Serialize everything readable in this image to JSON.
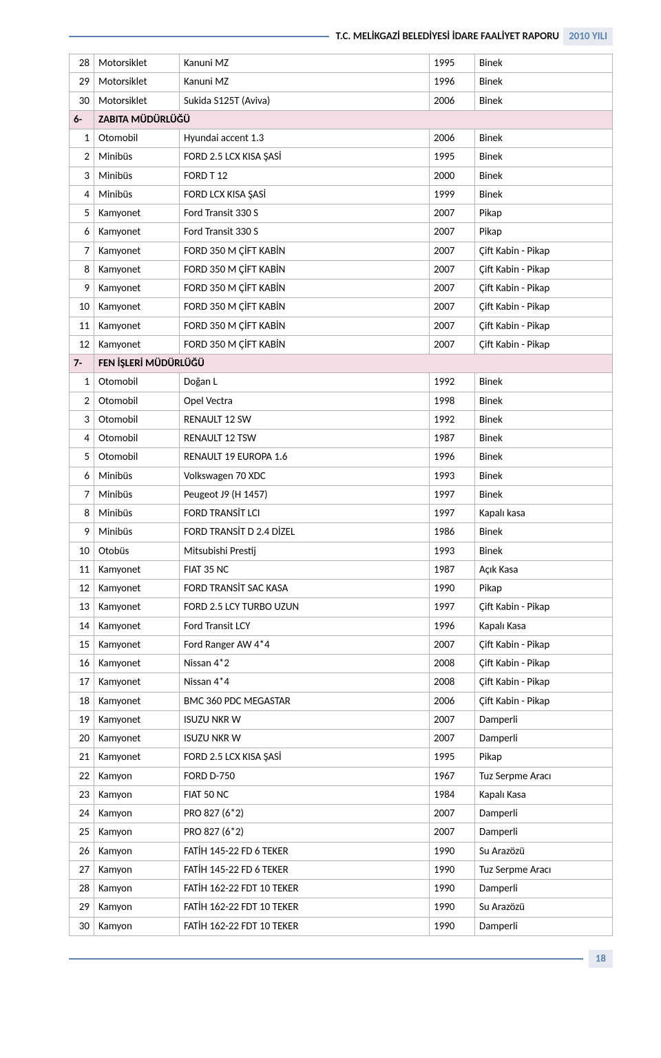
{
  "header": {
    "title": "T.C. MELİKGAZİ BELEDİYESİ İDARE FAALİYET RAPORU",
    "year": "2010 YILI"
  },
  "footer": {
    "page": "18"
  },
  "colors": {
    "section_bg": "#f2dde4",
    "border": "#b0b0b0",
    "accent": "#5a82b0",
    "header_box_bg": "#e6eaf0"
  },
  "layout": {
    "col_widths": {
      "idx": 36,
      "type": 124,
      "year": 66,
      "cat": 200
    },
    "font_size": 15
  },
  "rows": [
    {
      "kind": "data",
      "idx": "28",
      "type": "Motorsiklet",
      "model": "Kanuni MZ",
      "year": "1995",
      "cat": "Binek"
    },
    {
      "kind": "data",
      "idx": "29",
      "type": "Motorsiklet",
      "model": "Kanuni MZ",
      "year": "1996",
      "cat": "Binek"
    },
    {
      "kind": "data",
      "idx": "30",
      "type": "Motorsiklet",
      "model": "Sukida S125T (Aviva)",
      "year": "2006",
      "cat": "Binek"
    },
    {
      "kind": "section",
      "num": "6-",
      "label": "ZABITA MÜDÜRLÜĞÜ"
    },
    {
      "kind": "data",
      "idx": "1",
      "type": "Otomobil",
      "model": "Hyundai accent 1.3",
      "year": "2006",
      "cat": "Binek"
    },
    {
      "kind": "data",
      "idx": "2",
      "type": "Minibüs",
      "model": "FORD 2.5 LCX KISA ŞASİ",
      "year": "1995",
      "cat": "Binek"
    },
    {
      "kind": "data",
      "idx": "3",
      "type": "Minibüs",
      "model": "FORD T 12",
      "year": "2000",
      "cat": "Binek"
    },
    {
      "kind": "data",
      "idx": "4",
      "type": "Minibüs",
      "model": "FORD LCX KISA ŞASİ",
      "year": "1999",
      "cat": "Binek"
    },
    {
      "kind": "data",
      "idx": "5",
      "type": "Kamyonet",
      "model": "Ford Transit 330 S",
      "year": "2007",
      "cat": "Pikap"
    },
    {
      "kind": "data",
      "idx": "6",
      "type": "Kamyonet",
      "model": "Ford Transit 330 S",
      "year": "2007",
      "cat": "Pikap"
    },
    {
      "kind": "data",
      "idx": "7",
      "type": "Kamyonet",
      "model": "FORD 350 M ÇİFT KABİN",
      "year": "2007",
      "cat": "Çift Kabin - Pikap"
    },
    {
      "kind": "data",
      "idx": "8",
      "type": "Kamyonet",
      "model": "FORD 350 M ÇİFT KABİN",
      "year": "2007",
      "cat": "Çift Kabin - Pikap"
    },
    {
      "kind": "data",
      "idx": "9",
      "type": "Kamyonet",
      "model": "FORD 350 M ÇİFT KABİN",
      "year": "2007",
      "cat": "Çift Kabin - Pikap"
    },
    {
      "kind": "data",
      "idx": "10",
      "type": "Kamyonet",
      "model": "FORD 350 M ÇİFT KABİN",
      "year": "2007",
      "cat": "Çift Kabin - Pikap"
    },
    {
      "kind": "data",
      "idx": "11",
      "type": "Kamyonet",
      "model": "FORD 350 M ÇİFT KABİN",
      "year": "2007",
      "cat": "Çift Kabin - Pikap"
    },
    {
      "kind": "data",
      "idx": "12",
      "type": "Kamyonet",
      "model": "FORD 350 M ÇİFT KABİN",
      "year": "2007",
      "cat": "Çift Kabin - Pikap"
    },
    {
      "kind": "section",
      "num": "7-",
      "label": "FEN İŞLERİ MÜDÜRLÜĞÜ"
    },
    {
      "kind": "data",
      "idx": "1",
      "type": "Otomobil",
      "model": "Doğan L",
      "year": "1992",
      "cat": "Binek"
    },
    {
      "kind": "data",
      "idx": "2",
      "type": "Otomobil",
      "model": "Opel Vectra",
      "year": "1998",
      "cat": "Binek"
    },
    {
      "kind": "data",
      "idx": "3",
      "type": "Otomobil",
      "model": "RENAULT 12 SW",
      "year": "1992",
      "cat": "Binek"
    },
    {
      "kind": "data",
      "idx": "4",
      "type": "Otomobil",
      "model": "RENAULT 12 TSW",
      "year": "1987",
      "cat": "Binek"
    },
    {
      "kind": "data",
      "idx": "5",
      "type": "Otomobil",
      "model": "RENAULT 19 EUROPA 1.6",
      "year": "1996",
      "cat": "Binek"
    },
    {
      "kind": "data",
      "idx": "6",
      "type": "Minibüs",
      "model": "Volkswagen 70 XDC",
      "year": "1993",
      "cat": "Binek"
    },
    {
      "kind": "data",
      "idx": "7",
      "type": "Minibüs",
      "model": "Peugeot J9 (H 1457)",
      "year": "1997",
      "cat": "Binek"
    },
    {
      "kind": "data",
      "idx": "8",
      "type": "Minibüs",
      "model": "FORD TRANSİT LCI",
      "year": "1997",
      "cat": "Kapalı kasa"
    },
    {
      "kind": "data",
      "idx": "9",
      "type": "Minibüs",
      "model": "FORD TRANSİT D 2.4 DİZEL",
      "year": "1986",
      "cat": "Binek"
    },
    {
      "kind": "data",
      "idx": "10",
      "type": "Otobüs",
      "model": "Mitsubishi Prestij",
      "year": "1993",
      "cat": "Binek"
    },
    {
      "kind": "data",
      "idx": "11",
      "type": "Kamyonet",
      "model": "FIAT 35 NC",
      "year": "1987",
      "cat": "Açık Kasa"
    },
    {
      "kind": "data",
      "idx": "12",
      "type": "Kamyonet",
      "model": "FORD TRANSİT SAC KASA",
      "year": "1990",
      "cat": "Pikap"
    },
    {
      "kind": "data",
      "idx": "13",
      "type": "Kamyonet",
      "model": "FORD 2.5 LCY TURBO UZUN",
      "year": "1997",
      "cat": "Çift Kabin - Pikap"
    },
    {
      "kind": "data",
      "idx": "14",
      "type": "Kamyonet",
      "model": "Ford Transit LCY",
      "year": "1996",
      "cat": "Kapalı Kasa"
    },
    {
      "kind": "data",
      "idx": "15",
      "type": "Kamyonet",
      "model": "Ford Ranger AW 4*4",
      "year": "2007",
      "cat": "Çift Kabin - Pikap"
    },
    {
      "kind": "data",
      "idx": "16",
      "type": "Kamyonet",
      "model": "Nissan 4*2",
      "year": "2008",
      "cat": "Çift Kabin - Pikap"
    },
    {
      "kind": "data",
      "idx": "17",
      "type": "Kamyonet",
      "model": "Nissan 4*4",
      "year": "2008",
      "cat": "Çift Kabin - Pikap"
    },
    {
      "kind": "data",
      "idx": "18",
      "type": "Kamyonet",
      "model": "BMC 360 PDC MEGASTAR",
      "year": "2006",
      "cat": "Çift Kabin - Pikap"
    },
    {
      "kind": "data",
      "idx": "19",
      "type": "Kamyonet",
      "model": "ISUZU NKR W",
      "year": "2007",
      "cat": "Damperli"
    },
    {
      "kind": "data",
      "idx": "20",
      "type": "Kamyonet",
      "model": "ISUZU NKR W",
      "year": "2007",
      "cat": "Damperli"
    },
    {
      "kind": "data",
      "idx": "21",
      "type": "Kamyonet",
      "model": "FORD 2.5 LCX KISA ŞASİ",
      "year": "1995",
      "cat": "Pikap"
    },
    {
      "kind": "data",
      "idx": "22",
      "type": "Kamyon",
      "model": "FORD D-750",
      "year": "1967",
      "cat": "Tuz Serpme Aracı"
    },
    {
      "kind": "data",
      "idx": "23",
      "type": "Kamyon",
      "model": "FIAT 50 NC",
      "year": "1984",
      "cat": "Kapalı Kasa"
    },
    {
      "kind": "data",
      "idx": "24",
      "type": "Kamyon",
      "model": "PRO 827 (6*2)",
      "year": "2007",
      "cat": "Damperli"
    },
    {
      "kind": "data",
      "idx": "25",
      "type": "Kamyon",
      "model": "PRO 827 (6*2)",
      "year": "2007",
      "cat": "Damperli"
    },
    {
      "kind": "data",
      "idx": "26",
      "type": "Kamyon",
      "model": "FATİH 145-22 FD 6 TEKER",
      "year": "1990",
      "cat": "Su Arazözü"
    },
    {
      "kind": "data",
      "idx": "27",
      "type": "Kamyon",
      "model": "FATİH 145-22 FD 6 TEKER",
      "year": "1990",
      "cat": "Tuz Serpme Aracı"
    },
    {
      "kind": "data",
      "idx": "28",
      "type": "Kamyon",
      "model": "FATİH 162-22 FDT 10 TEKER",
      "year": "1990",
      "cat": "Damperli"
    },
    {
      "kind": "data",
      "idx": "29",
      "type": "Kamyon",
      "model": "FATİH 162-22 FDT 10 TEKER",
      "year": "1990",
      "cat": "Su Arazözü"
    },
    {
      "kind": "data",
      "idx": "30",
      "type": "Kamyon",
      "model": "FATİH 162-22 FDT 10 TEKER",
      "year": "1990",
      "cat": "Damperli"
    }
  ]
}
